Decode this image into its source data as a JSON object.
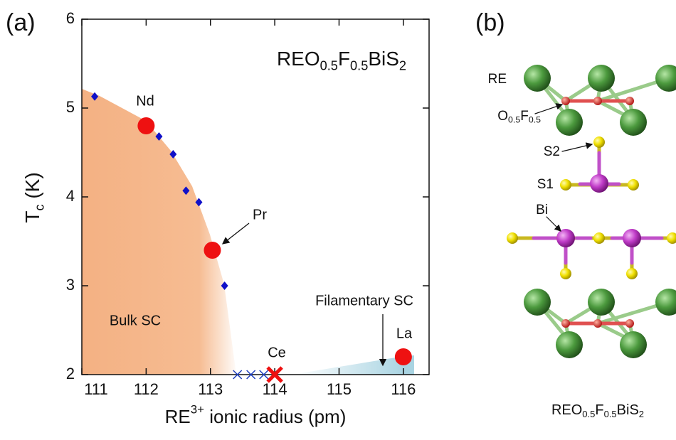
{
  "chart_data": {
    "type": "scatter",
    "panel_label": "(a)",
    "title": [
      "REO",
      "0.5",
      "F",
      "0.5",
      "BiS",
      "2"
    ],
    "x_label": [
      "RE",
      "3+",
      " ionic radius (pm)"
    ],
    "y_label": [
      "T",
      "c",
      " (K)"
    ],
    "xlim": [
      111,
      116.4
    ],
    "ylim": [
      2,
      6
    ],
    "xticks": [
      111,
      112,
      113,
      114,
      115,
      116
    ],
    "yticks": [
      2,
      3,
      4,
      5,
      6
    ],
    "series": [
      {
        "marker": "diamond",
        "color": "#1010c8",
        "x": [
          111.2,
          112.2,
          112.42,
          112.62,
          112.82,
          113.22
        ],
        "values": [
          5.13,
          4.68,
          4.48,
          4.07,
          3.94,
          3.0
        ]
      },
      {
        "marker": "circle",
        "color": "#ee1111",
        "x": [
          112,
          113.03,
          116
        ],
        "values": [
          4.8,
          3.4,
          2.2
        ]
      },
      {
        "marker": "x",
        "color": "#1f3fc0",
        "x": [
          113.42,
          113.63,
          113.83
        ],
        "values": [
          2,
          2,
          2
        ]
      },
      {
        "marker": "bigx",
        "color": "#ee1111",
        "x": [
          114
        ],
        "values": [
          2
        ]
      }
    ],
    "annotations": [
      "Nd",
      "Pr",
      "Ce",
      "La",
      "Bulk SC",
      "Filamentary SC"
    ]
  },
  "diagram": {
    "panel_label": "(b)",
    "labels": [
      "RE",
      [
        "O",
        "0.5",
        "F",
        "0.5"
      ],
      "S2",
      "S1",
      "Bi"
    ],
    "caption": [
      "REO",
      "0.5",
      "F",
      "0.5",
      "BiS",
      "2"
    ]
  }
}
